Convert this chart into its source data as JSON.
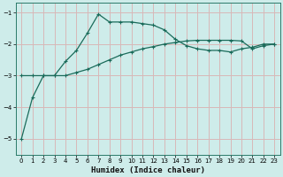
{
  "xlabel": "Humidex (Indice chaleur)",
  "background_color": "#ceecea",
  "grid_color": "#d8b8b8",
  "line_color": "#1a6b5a",
  "xlim": [
    -0.5,
    23.5
  ],
  "ylim": [
    -5.5,
    -0.7
  ],
  "yticks": [
    -5,
    -4,
    -3,
    -2,
    -1
  ],
  "xticks": [
    0,
    1,
    2,
    3,
    4,
    5,
    6,
    7,
    8,
    9,
    10,
    11,
    12,
    13,
    14,
    15,
    16,
    17,
    18,
    19,
    20,
    21,
    22,
    23
  ],
  "curve1_x": [
    0,
    1,
    2,
    3,
    4,
    5,
    6,
    7,
    8,
    9,
    10,
    11,
    12,
    13,
    14,
    15,
    16,
    17,
    18,
    19,
    20,
    21,
    22,
    23
  ],
  "curve1_y": [
    -3.0,
    -3.0,
    -3.0,
    -3.0,
    -2.55,
    -2.2,
    -1.65,
    -1.05,
    -1.3,
    -1.3,
    -1.3,
    -1.35,
    -1.4,
    -1.55,
    -1.85,
    -2.05,
    -2.15,
    -2.2,
    -2.2,
    -2.25,
    -2.15,
    -2.1,
    -2.0,
    -2.0
  ],
  "curve2_x": [
    0,
    1,
    2,
    3,
    4,
    5,
    6,
    7,
    8,
    9,
    10,
    11,
    12,
    13,
    14,
    15,
    16,
    17,
    18,
    19,
    20,
    21,
    22,
    23
  ],
  "curve2_y": [
    -5.0,
    -3.7,
    -3.0,
    -3.0,
    -3.0,
    -2.9,
    -2.8,
    -2.65,
    -2.5,
    -2.35,
    -2.25,
    -2.15,
    -2.08,
    -2.0,
    -1.95,
    -1.9,
    -1.88,
    -1.88,
    -1.88,
    -1.88,
    -1.9,
    -2.15,
    -2.05,
    -2.0
  ]
}
